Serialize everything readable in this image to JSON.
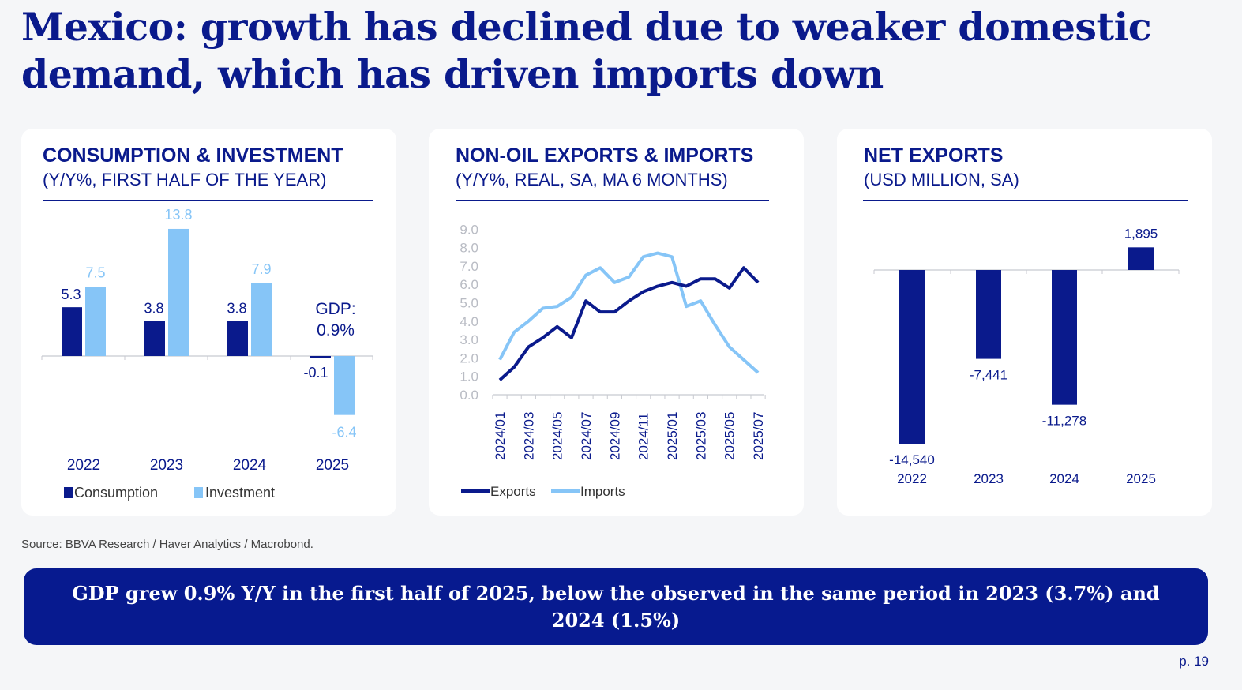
{
  "title": "Mexico: growth has declined due to weaker domestic demand, which has driven imports down",
  "source": "Source: BBVA Research / Haver Analytics / Macrobond.",
  "banner": "GDP grew 0.9% Y/Y in the first half of 2025, below the observed in the same period in 2023 (3.7%)  and 2024 (1.5%)",
  "page_number": "p. 19",
  "colors": {
    "navy": "#0a1a8c",
    "light_blue": "#86c5f7",
    "axis_gray": "#b9bcc4"
  },
  "chart_data": [
    {
      "type": "bar",
      "title": "CONSUMPTION & INVESTMENT",
      "subtitle": "(Y/Y%, FIRST HALF OF THE YEAR)",
      "categories": [
        "2022",
        "2023",
        "2024",
        "2025"
      ],
      "series": [
        {
          "name": "Consumption",
          "values": [
            5.3,
            3.8,
            3.8,
            -0.1
          ],
          "labels": [
            "5.3",
            "3.8",
            "3.8",
            "-0.1"
          ],
          "color": "#0a1a8c"
        },
        {
          "name": "Investment",
          "values": [
            7.5,
            13.8,
            7.9,
            -6.4
          ],
          "labels": [
            "7.5",
            "13.8",
            "7.9",
            "-6.4"
          ],
          "color": "#86c5f7"
        }
      ],
      "annotation": [
        "GDP:",
        "0.9%"
      ],
      "legend": "bottom"
    },
    {
      "type": "line",
      "title": "NON-OIL EXPORTS & IMPORTS",
      "subtitle": "(Y/Y%, REAL, SA, MA 6 MONTHS)",
      "x": [
        "2024/01",
        "2024/02",
        "2024/03",
        "2024/04",
        "2024/05",
        "2024/06",
        "2024/07",
        "2024/08",
        "2024/09",
        "2024/10",
        "2024/11",
        "2024/12",
        "2025/01",
        "2025/02",
        "2025/03",
        "2025/04",
        "2025/05",
        "2025/06",
        "2025/07"
      ],
      "x_tick_labels": [
        "2024/01",
        "2024/03",
        "2024/05",
        "2024/07",
        "2024/09",
        "2024/11",
        "2025/01",
        "2025/03",
        "2025/05",
        "2025/07"
      ],
      "y_tick_labels": [
        "0.0",
        "1.0",
        "2.0",
        "3.0",
        "4.0",
        "5.0",
        "6.0",
        "7.0",
        "8.0",
        "9.0"
      ],
      "ylim": [
        0,
        9
      ],
      "grid": false,
      "series": [
        {
          "name": "Exports",
          "color": "#0a1a8c",
          "values": [
            0.8,
            1.5,
            2.6,
            3.1,
            3.7,
            3.1,
            5.1,
            4.5,
            4.5,
            5.1,
            5.6,
            5.9,
            6.1,
            5.9,
            6.3,
            6.3,
            5.8,
            6.9,
            6.1
          ]
        },
        {
          "name": "Imports",
          "color": "#86c5f7",
          "values": [
            1.9,
            3.4,
            4.0,
            4.7,
            4.8,
            5.3,
            6.5,
            6.9,
            6.1,
            6.4,
            7.5,
            7.7,
            7.5,
            4.8,
            5.1,
            3.8,
            2.6,
            1.9,
            1.2
          ]
        }
      ],
      "legend": "bottom"
    },
    {
      "type": "bar",
      "title": "NET EXPORTS",
      "subtitle": "(USD MILLION, SA)",
      "categories": [
        "2022",
        "2023",
        "2024",
        "2025"
      ],
      "values": [
        -14540,
        -7441,
        -11278,
        1895
      ],
      "labels": [
        "-14,540",
        "-7,441",
        "-11,278",
        "1,895"
      ],
      "color": "#0a1a8c"
    }
  ]
}
